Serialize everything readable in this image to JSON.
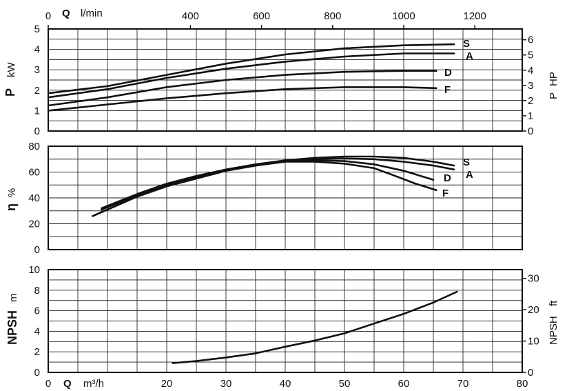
{
  "chart_data": [
    {
      "type": "line",
      "panel": "power",
      "xlabel_top": "Q",
      "xunit_top": "l/min",
      "xtick_labels_top": [
        "0",
        "400",
        "600",
        "800",
        "1000",
        "1200"
      ],
      "ylabel": "P",
      "yunit": "kW",
      "ytick_labels": [
        "0",
        "1",
        "2",
        "3",
        "4",
        "5"
      ],
      "ylim": [
        0,
        5
      ],
      "y2label": "P",
      "y2unit": "HP",
      "y2tick_labels": [
        "0",
        "1",
        "2",
        "3",
        "4",
        "5",
        "6"
      ],
      "y2lim": [
        0,
        6.71
      ],
      "xlim": [
        0,
        80
      ],
      "grid": true,
      "series": [
        {
          "name": "S",
          "x": [
            0,
            10,
            20,
            30,
            40,
            50,
            60,
            68.5
          ],
          "y": [
            1.85,
            2.2,
            2.75,
            3.3,
            3.75,
            4.05,
            4.2,
            4.25
          ]
        },
        {
          "name": "A",
          "x": [
            0,
            10,
            20,
            30,
            40,
            50,
            60,
            68.5
          ],
          "y": [
            1.65,
            2.05,
            2.6,
            3.05,
            3.4,
            3.65,
            3.8,
            3.8
          ]
        },
        {
          "name": "D",
          "x": [
            0,
            10,
            20,
            30,
            40,
            50,
            60,
            65.5
          ],
          "y": [
            1.25,
            1.65,
            2.15,
            2.5,
            2.75,
            2.9,
            2.95,
            2.95
          ]
        },
        {
          "name": "F",
          "x": [
            0,
            10,
            20,
            30,
            40,
            50,
            60,
            65.5
          ],
          "y": [
            1.0,
            1.3,
            1.6,
            1.85,
            2.05,
            2.15,
            2.15,
            2.1
          ]
        }
      ]
    },
    {
      "type": "line",
      "panel": "efficiency",
      "ylabel": "η",
      "yunit": "%",
      "ytick_labels": [
        "0",
        "20",
        "40",
        "60",
        "80"
      ],
      "ylim": [
        0,
        80
      ],
      "xlim": [
        0,
        80
      ],
      "grid": true,
      "series": [
        {
          "name": "S",
          "x": [
            9,
            15,
            20,
            25,
            30,
            35,
            40,
            45,
            50,
            55,
            60,
            65,
            68.5
          ],
          "y": [
            32,
            43,
            51,
            57,
            62,
            66,
            69,
            71,
            72,
            72,
            71,
            68,
            65
          ]
        },
        {
          "name": "A",
          "x": [
            9,
            15,
            20,
            25,
            30,
            35,
            40,
            45,
            50,
            55,
            60,
            65,
            68.5
          ],
          "y": [
            31,
            42,
            50,
            56,
            61,
            65.5,
            68.5,
            70,
            70.5,
            70,
            68,
            65,
            62
          ]
        },
        {
          "name": "D",
          "x": [
            7.5,
            15,
            20,
            25,
            30,
            35,
            40,
            45,
            50,
            55,
            60,
            65
          ],
          "y": [
            26,
            41,
            49,
            55,
            61,
            65,
            68.5,
            69,
            68.5,
            66,
            61,
            54
          ]
        },
        {
          "name": "F",
          "x": [
            7.5,
            15,
            20,
            25,
            30,
            35,
            40,
            45,
            50,
            55,
            58,
            62,
            65.5
          ],
          "y": [
            26,
            41,
            49,
            55,
            61,
            65,
            68,
            68,
            66.5,
            63,
            58,
            51,
            46
          ]
        }
      ]
    },
    {
      "type": "line",
      "panel": "npsh",
      "ylabel": "NPSH",
      "yunit": "m",
      "ytick_labels": [
        "0",
        "2",
        "4",
        "6",
        "8",
        "10"
      ],
      "ylim": [
        0,
        10
      ],
      "y2label": "NPSH",
      "y2unit": "ft",
      "y2tick_labels": [
        "0",
        "10",
        "20",
        "30"
      ],
      "y2lim": [
        0,
        32.8
      ],
      "xlabel": "Q",
      "xunit": "m³/h",
      "xtick_labels": [
        "0",
        "20",
        "30",
        "40",
        "50",
        "60",
        "70",
        "80"
      ],
      "xlim": [
        0,
        80
      ],
      "grid": true,
      "series": [
        {
          "name": "",
          "x": [
            21,
            25,
            30,
            35,
            40,
            45,
            50,
            55,
            60,
            65,
            69
          ],
          "y": [
            0.9,
            1.1,
            1.45,
            1.85,
            2.5,
            3.1,
            3.8,
            4.75,
            5.7,
            6.8,
            7.85
          ]
        }
      ]
    }
  ]
}
